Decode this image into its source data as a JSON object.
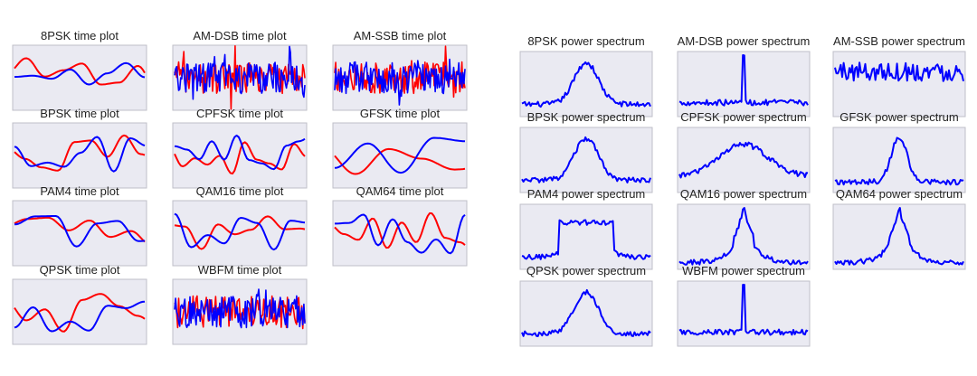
{
  "colors": {
    "panel_bg": "#eaeaf2",
    "panel_border": "#bfbfc8",
    "series_i": "#0000ff",
    "series_q": "#ff0000"
  },
  "chart_data": [
    {
      "type": "line",
      "group": "time plots",
      "panels": [
        {
          "title": "8PSK time plot",
          "kind": "time",
          "style": "smooth",
          "period": 9
        },
        {
          "title": "AM-DSB time plot",
          "kind": "time",
          "style": "noise"
        },
        {
          "title": "AM-SSB time plot",
          "kind": "time",
          "style": "noise"
        },
        {
          "title": "BPSK time plot",
          "kind": "time",
          "style": "smooth",
          "period": 8
        },
        {
          "title": "CPFSK time plot",
          "kind": "time",
          "style": "smooth",
          "period": 6
        },
        {
          "title": "GFSK time plot",
          "kind": "time",
          "style": "slow",
          "period": 16
        },
        {
          "title": "PAM4 time plot",
          "kind": "time",
          "style": "smooth",
          "period": 10
        },
        {
          "title": "QAM16 time plot",
          "kind": "time",
          "style": "smooth",
          "period": 8
        },
        {
          "title": "QAM64 time plot",
          "kind": "time",
          "style": "smooth",
          "period": 7
        },
        {
          "title": "QPSK time plot",
          "kind": "time",
          "style": "smooth",
          "period": 9
        },
        {
          "title": "WBFM time plot",
          "kind": "time",
          "style": "noise"
        }
      ]
    },
    {
      "type": "line",
      "group": "power spectra",
      "panels": [
        {
          "title": "8PSK power spectrum",
          "kind": "spectrum",
          "shape": "hump"
        },
        {
          "title": "AM-DSB power spectrum",
          "kind": "spectrum",
          "shape": "spike"
        },
        {
          "title": "AM-SSB power spectrum",
          "kind": "spectrum",
          "shape": "noise"
        },
        {
          "title": "BPSK power spectrum",
          "kind": "spectrum",
          "shape": "hump"
        },
        {
          "title": "CPFSK power spectrum",
          "kind": "spectrum",
          "shape": "wide"
        },
        {
          "title": "GFSK power spectrum",
          "kind": "spectrum",
          "shape": "narrow"
        },
        {
          "title": "PAM4 power spectrum",
          "kind": "spectrum",
          "shape": "flat"
        },
        {
          "title": "QAM16 power spectrum",
          "kind": "spectrum",
          "shape": "bell"
        },
        {
          "title": "QAM64 power spectrum",
          "kind": "spectrum",
          "shape": "bell"
        },
        {
          "title": "QPSK power spectrum",
          "kind": "spectrum",
          "shape": "hump"
        },
        {
          "title": "WBFM power spectrum",
          "kind": "spectrum",
          "shape": "spike"
        }
      ]
    }
  ]
}
